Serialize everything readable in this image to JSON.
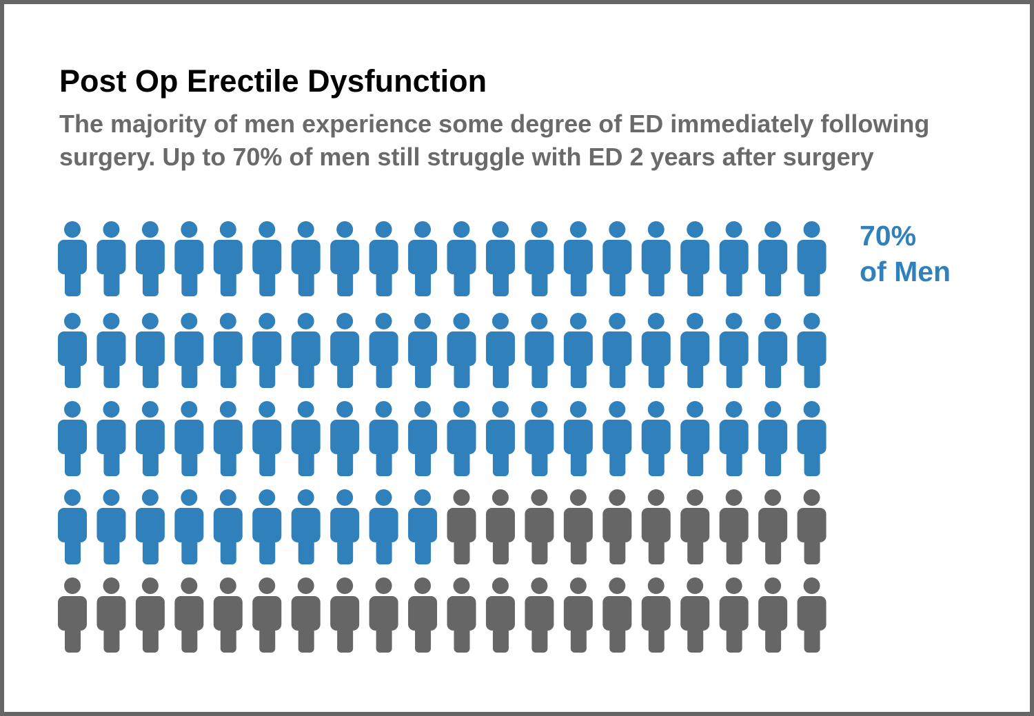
{
  "chart_data": {
    "type": "pictogram",
    "title": "Post Op Erectile Dysfunction",
    "subtitle": "The majority of men experience some degree of ED immediately following surgery. Up to 70% of men still struggle with ED 2 years after surgery",
    "total": 100,
    "highlighted": 70,
    "columns": 20,
    "rows": 5,
    "icon": "person-icon",
    "callout": {
      "value": "70%",
      "label": "of Men"
    },
    "colors": {
      "highlighted": "#2f80bb",
      "rest": "#666666"
    }
  }
}
